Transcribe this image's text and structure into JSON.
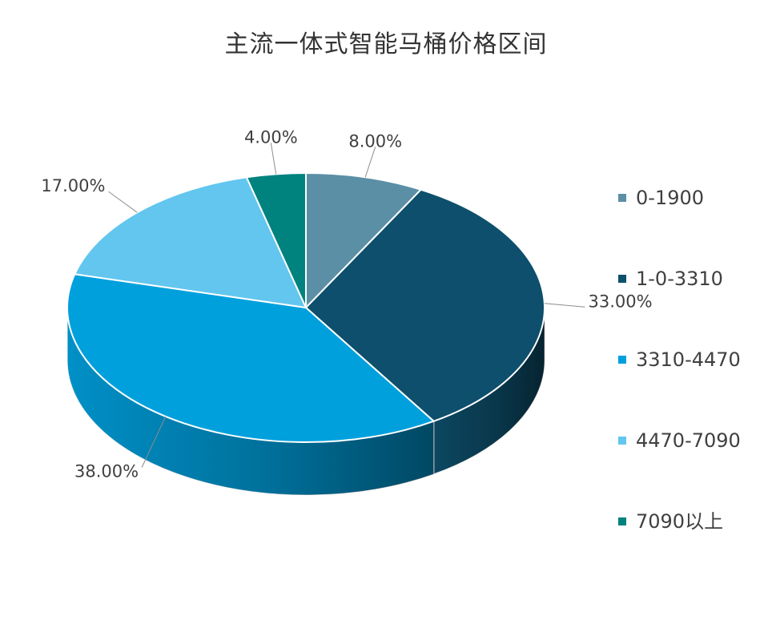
{
  "title": "主流一体式智能马桶价格区间",
  "chart_data": {
    "type": "pie",
    "title": "主流一体式智能马桶价格区间",
    "categories": [
      "0-1900",
      "1-0-3310",
      "3310-4470",
      "4470-7090",
      "7090以上"
    ],
    "values": [
      8,
      33,
      38,
      17,
      4
    ],
    "labels": [
      "8.00%",
      "33.00%",
      "38.00%",
      "17.00%",
      "4.00%"
    ],
    "colors": [
      "#5b8fa6",
      "#0d4f6c",
      "#00a0dd",
      "#62c6ef",
      "#00827f"
    ],
    "legend_position": "right",
    "style": "3d"
  }
}
